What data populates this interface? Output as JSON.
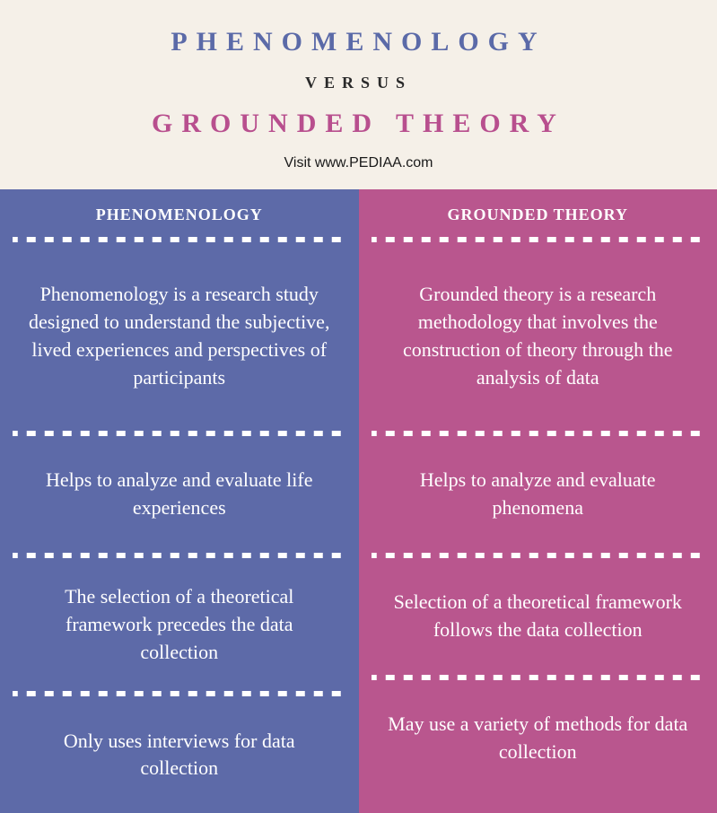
{
  "header": {
    "title_top": "PHENOMENOLOGY",
    "versus": "VERSUS",
    "title_bottom": "GROUNDED THEORY",
    "visit": "Visit www.PEDIAA.com"
  },
  "colors": {
    "left_bg": "#5d6aa8",
    "right_bg": "#b9568e",
    "title_top_color": "#5b6aa8",
    "title_bottom_color": "#b84f8e",
    "page_bg": "#f5f0e8",
    "divider_color": "#ffffff"
  },
  "left": {
    "header": "PHENOMENOLOGY",
    "rows": [
      "Phenomenology is a research study designed to understand the subjective, lived experiences and perspectives of participants",
      "Helps to analyze and evaluate life experiences",
      "The selection of a theoretical framework precedes the data collection",
      "Only uses interviews for data collection"
    ]
  },
  "right": {
    "header": "GROUNDED THEORY",
    "rows": [
      "Grounded theory is a research methodology that involves the construction of theory through the analysis of data",
      "Helps to analyze and evaluate phenomena",
      "Selection of a theoretical framework follows the data collection",
      "May use a variety of methods for data collection"
    ]
  }
}
